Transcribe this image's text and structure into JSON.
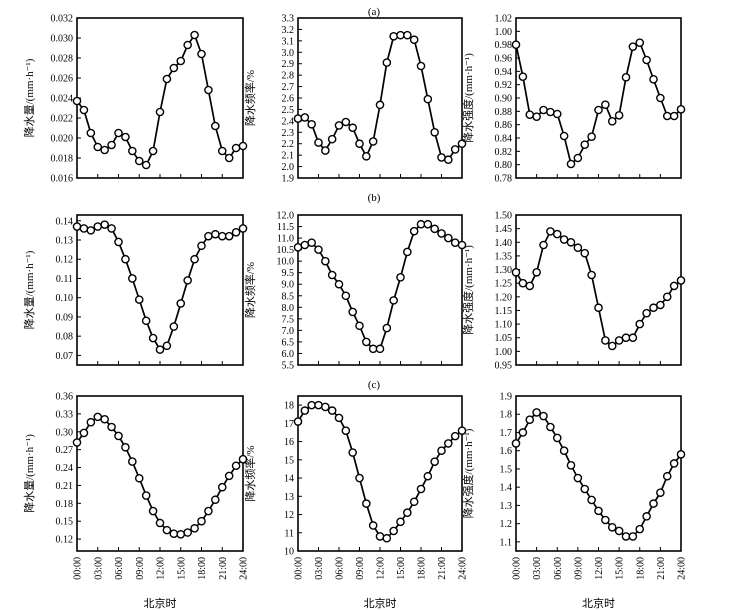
{
  "panel_labels": [
    "(a)",
    "(b)",
    "(c)"
  ],
  "chart_data": [
    {
      "type": "line",
      "row": 0,
      "col": 0,
      "ylabel": "降水量/(mm·h⁻¹)",
      "xlabel": "",
      "ylim": [
        0.016,
        0.032
      ],
      "yticks": [
        0.016,
        0.018,
        0.02,
        0.022,
        0.024,
        0.026,
        0.028,
        0.03,
        0.032
      ],
      "yticklabels": [
        "0.016",
        "0.018",
        "0.020",
        "0.022",
        "0.024",
        "0.026",
        "0.028",
        "0.030",
        "0.032"
      ],
      "xlim": [
        0,
        24
      ],
      "x": [
        0,
        1,
        2,
        3,
        4,
        5,
        6,
        7,
        8,
        9,
        10,
        11,
        12,
        13,
        14,
        15,
        16,
        17,
        18,
        19,
        20,
        21,
        22,
        23,
        24
      ],
      "values": [
        0.0237,
        0.0228,
        0.0205,
        0.0191,
        0.0188,
        0.0193,
        0.0205,
        0.0201,
        0.0187,
        0.0177,
        0.0173,
        0.0187,
        0.0226,
        0.0259,
        0.027,
        0.0277,
        0.0293,
        0.0303,
        0.0284,
        0.0248,
        0.0212,
        0.0187,
        0.018,
        0.019,
        0.0192
      ]
    },
    {
      "type": "line",
      "row": 0,
      "col": 1,
      "ylabel": "降水频率/%",
      "xlabel": "",
      "ylim": [
        1.9,
        3.3
      ],
      "yticks": [
        1.9,
        2.0,
        2.1,
        2.2,
        2.3,
        2.4,
        2.5,
        2.6,
        2.7,
        2.8,
        2.9,
        3.0,
        3.1,
        3.2,
        3.3
      ],
      "yticklabels": [
        "1.9",
        "2.0",
        "2.1",
        "2.2",
        "2.3",
        "2.4",
        "2.5",
        "2.6",
        "2.7",
        "2.8",
        "2.9",
        "3.0",
        "3.1",
        "3.2",
        "3.3"
      ],
      "xlim": [
        0,
        24
      ],
      "x": [
        0,
        1,
        2,
        3,
        4,
        5,
        6,
        7,
        8,
        9,
        10,
        11,
        12,
        13,
        14,
        15,
        16,
        17,
        18,
        19,
        20,
        21,
        22,
        23,
        24
      ],
      "values": [
        2.42,
        2.43,
        2.37,
        2.21,
        2.14,
        2.24,
        2.36,
        2.39,
        2.34,
        2.2,
        2.09,
        2.22,
        2.54,
        2.91,
        3.14,
        3.15,
        3.15,
        3.11,
        2.88,
        2.59,
        2.3,
        2.08,
        2.06,
        2.15,
        2.2
      ]
    },
    {
      "type": "line",
      "row": 0,
      "col": 2,
      "ylabel": "降水强度/(mm·h⁻¹)",
      "xlabel": "",
      "ylim": [
        0.78,
        1.02
      ],
      "yticks": [
        0.78,
        0.8,
        0.82,
        0.84,
        0.86,
        0.88,
        0.9,
        0.92,
        0.94,
        0.96,
        0.98,
        1.0,
        1.02
      ],
      "yticklabels": [
        "0.78",
        "0.80",
        "0.82",
        "0.84",
        "0.86",
        "0.88",
        "0.90",
        "0.92",
        "0.94",
        "0.96",
        "0.98",
        "1.00",
        "1.02"
      ],
      "xlim": [
        0,
        24
      ],
      "x": [
        0,
        1,
        2,
        3,
        4,
        5,
        6,
        7,
        8,
        9,
        10,
        11,
        12,
        13,
        14,
        15,
        16,
        17,
        18,
        19,
        20,
        21,
        22,
        23,
        24
      ],
      "values": [
        0.98,
        0.932,
        0.875,
        0.872,
        0.882,
        0.879,
        0.876,
        0.843,
        0.801,
        0.81,
        0.83,
        0.842,
        0.882,
        0.89,
        0.865,
        0.874,
        0.931,
        0.977,
        0.983,
        0.957,
        0.928,
        0.9,
        0.873,
        0.873,
        0.883
      ]
    },
    {
      "type": "line",
      "row": 1,
      "col": 0,
      "ylabel": "降水量/(mm·h⁻¹)",
      "xlabel": "",
      "ylim": [
        0.065,
        0.143
      ],
      "yticks": [
        0.07,
        0.08,
        0.09,
        0.1,
        0.11,
        0.12,
        0.13,
        0.14
      ],
      "yticklabels": [
        "0.07",
        "0.08",
        "0.09",
        "0.10",
        "0.11",
        "0.12",
        "0.13",
        "0.14"
      ],
      "xlim": [
        0,
        24
      ],
      "x": [
        0,
        1,
        2,
        3,
        4,
        5,
        6,
        7,
        8,
        9,
        10,
        11,
        12,
        13,
        14,
        15,
        16,
        17,
        18,
        19,
        20,
        21,
        22,
        23,
        24
      ],
      "values": [
        0.137,
        0.136,
        0.135,
        0.137,
        0.138,
        0.136,
        0.129,
        0.12,
        0.11,
        0.099,
        0.088,
        0.079,
        0.073,
        0.075,
        0.085,
        0.097,
        0.109,
        0.12,
        0.127,
        0.132,
        0.133,
        0.132,
        0.132,
        0.134,
        0.136
      ]
    },
    {
      "type": "line",
      "row": 1,
      "col": 1,
      "ylabel": "降水频率/%",
      "xlabel": "",
      "ylim": [
        5.5,
        12.0
      ],
      "yticks": [
        5.5,
        6.0,
        6.5,
        7.0,
        7.5,
        8.0,
        8.5,
        9.0,
        9.5,
        10.0,
        10.5,
        11.0,
        11.5,
        12.0
      ],
      "yticklabels": [
        "5.5",
        "6.0",
        "6.5",
        "7.0",
        "7.5",
        "8.0",
        "8.5",
        "9.0",
        "9.5",
        "10.0",
        "10.5",
        "11.0",
        "11.5",
        "12.0"
      ],
      "xlim": [
        0,
        24
      ],
      "x": [
        0,
        1,
        2,
        3,
        4,
        5,
        6,
        7,
        8,
        9,
        10,
        11,
        12,
        13,
        14,
        15,
        16,
        17,
        18,
        19,
        20,
        21,
        22,
        23,
        24
      ],
      "values": [
        10.6,
        10.7,
        10.8,
        10.5,
        10.0,
        9.4,
        9.0,
        8.5,
        7.8,
        7.2,
        6.5,
        6.2,
        6.2,
        7.1,
        8.3,
        9.3,
        10.4,
        11.3,
        11.6,
        11.6,
        11.4,
        11.2,
        11.0,
        10.8,
        10.7
      ]
    },
    {
      "type": "line",
      "row": 1,
      "col": 2,
      "ylabel": "降水强度/(mm·h⁻¹)",
      "xlabel": "",
      "ylim": [
        0.95,
        1.5
      ],
      "yticks": [
        0.95,
        1.0,
        1.05,
        1.1,
        1.15,
        1.2,
        1.25,
        1.3,
        1.35,
        1.4,
        1.45,
        1.5
      ],
      "yticklabels": [
        "0.95",
        "1.00",
        "1.05",
        "1.10",
        "1.15",
        "1.20",
        "1.25",
        "1.30",
        "1.35",
        "1.40",
        "1.45",
        "1.50"
      ],
      "xlim": [
        0,
        24
      ],
      "x": [
        0,
        1,
        2,
        3,
        4,
        5,
        6,
        7,
        8,
        9,
        10,
        11,
        12,
        13,
        14,
        15,
        16,
        17,
        18,
        19,
        20,
        21,
        22,
        23,
        24
      ],
      "values": [
        1.29,
        1.25,
        1.24,
        1.29,
        1.39,
        1.44,
        1.43,
        1.41,
        1.4,
        1.38,
        1.36,
        1.28,
        1.16,
        1.04,
        1.02,
        1.04,
        1.05,
        1.05,
        1.1,
        1.14,
        1.16,
        1.17,
        1.2,
        1.24,
        1.26
      ]
    },
    {
      "type": "line",
      "row": 2,
      "col": 0,
      "ylabel": "降水量/(mm·h⁻¹)",
      "xlabel": "北京时",
      "ylim": [
        0.1,
        0.36
      ],
      "yticks": [
        0.12,
        0.15,
        0.18,
        0.21,
        0.24,
        0.27,
        0.3,
        0.33,
        0.36
      ],
      "yticklabels": [
        "0.12",
        "0.15",
        "0.18",
        "0.21",
        "0.24",
        "0.27",
        "0.30",
        "0.33",
        "0.36"
      ],
      "xlim": [
        0,
        24
      ],
      "x": [
        0,
        1,
        2,
        3,
        4,
        5,
        6,
        7,
        8,
        9,
        10,
        11,
        12,
        13,
        14,
        15,
        16,
        17,
        18,
        19,
        20,
        21,
        22,
        23,
        24
      ],
      "values": [
        0.282,
        0.298,
        0.316,
        0.325,
        0.321,
        0.308,
        0.293,
        0.274,
        0.25,
        0.222,
        0.193,
        0.167,
        0.147,
        0.135,
        0.129,
        0.128,
        0.131,
        0.138,
        0.15,
        0.167,
        0.186,
        0.207,
        0.226,
        0.243,
        0.254
      ]
    },
    {
      "type": "line",
      "row": 2,
      "col": 1,
      "ylabel": "降水频率/%",
      "xlabel": "北京时",
      "ylim": [
        10,
        18.5
      ],
      "yticks": [
        10,
        11,
        12,
        13,
        14,
        15,
        16,
        17,
        18
      ],
      "yticklabels": [
        "10",
        "11",
        "12",
        "13",
        "14",
        "15",
        "16",
        "17",
        "18"
      ],
      "xlim": [
        0,
        24
      ],
      "x": [
        0,
        1,
        2,
        3,
        4,
        5,
        6,
        7,
        8,
        9,
        10,
        11,
        12,
        13,
        14,
        15,
        16,
        17,
        18,
        19,
        20,
        21,
        22,
        23,
        24
      ],
      "values": [
        17.1,
        17.7,
        18.0,
        18.0,
        17.9,
        17.7,
        17.3,
        16.6,
        15.4,
        14.0,
        12.6,
        11.4,
        10.8,
        10.7,
        11.1,
        11.6,
        12.1,
        12.7,
        13.4,
        14.1,
        14.9,
        15.5,
        15.9,
        16.3,
        16.6
      ]
    },
    {
      "type": "line",
      "row": 2,
      "col": 2,
      "ylabel": "降水强度/(mm·h⁻¹)",
      "xlabel": "北京时",
      "ylim": [
        1.05,
        1.9
      ],
      "yticks": [
        1.1,
        1.2,
        1.3,
        1.4,
        1.5,
        1.6,
        1.7,
        1.8,
        1.9
      ],
      "yticklabels": [
        "1.1",
        "1.2",
        "1.3",
        "1.4",
        "1.5",
        "1.6",
        "1.7",
        "1.8",
        "1.9"
      ],
      "xlim": [
        0,
        24
      ],
      "x": [
        0,
        1,
        2,
        3,
        4,
        5,
        6,
        7,
        8,
        9,
        10,
        11,
        12,
        13,
        14,
        15,
        16,
        17,
        18,
        19,
        20,
        21,
        22,
        23,
        24
      ],
      "values": [
        1.64,
        1.7,
        1.77,
        1.81,
        1.79,
        1.73,
        1.67,
        1.6,
        1.52,
        1.45,
        1.39,
        1.33,
        1.27,
        1.22,
        1.18,
        1.16,
        1.13,
        1.13,
        1.17,
        1.24,
        1.31,
        1.37,
        1.46,
        1.53,
        1.58
      ]
    }
  ],
  "xticklabels": [
    "00:00",
    "03:00",
    "06:00",
    "09:00",
    "12:00",
    "15:00",
    "18:00",
    "21:00",
    "24:00"
  ]
}
